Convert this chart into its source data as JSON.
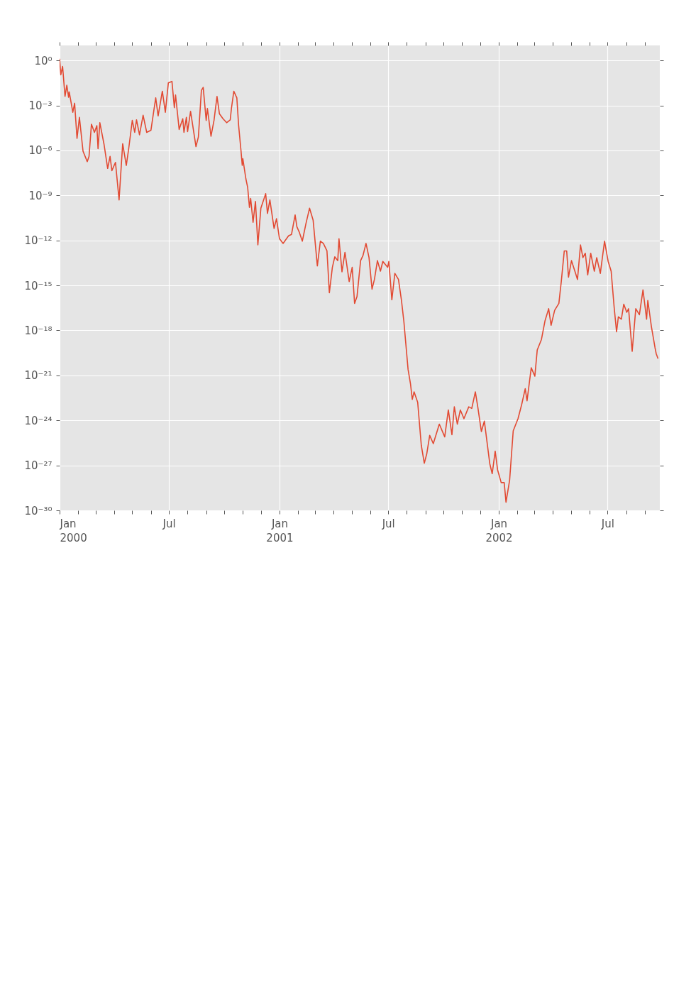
{
  "chart_data": {
    "type": "line",
    "log": "y",
    "grid": true,
    "xlim": [
      "2000-01-01",
      "2002-09-26"
    ],
    "ylim": [
      1e-30,
      10
    ],
    "xticks": [
      {
        "value": "2000-01-01",
        "label": "Jan 2000"
      },
      {
        "value": "2000-02-01",
        "label": null
      },
      {
        "value": "2000-03-01",
        "label": null
      },
      {
        "value": "2000-04-01",
        "label": null
      },
      {
        "value": "2000-05-01",
        "label": null
      },
      {
        "value": "2000-06-01",
        "label": null
      },
      {
        "value": "2000-07-01",
        "label": "Jul"
      },
      {
        "value": "2000-08-01",
        "label": null
      },
      {
        "value": "2000-09-01",
        "label": null
      },
      {
        "value": "2000-10-01",
        "label": null
      },
      {
        "value": "2000-11-01",
        "label": null
      },
      {
        "value": "2000-12-01",
        "label": null
      },
      {
        "value": "2001-01-01",
        "label": "Jan 2001"
      },
      {
        "value": "2001-02-01",
        "label": null
      },
      {
        "value": "2001-03-01",
        "label": null
      },
      {
        "value": "2001-04-01",
        "label": null
      },
      {
        "value": "2001-05-01",
        "label": null
      },
      {
        "value": "2001-06-01",
        "label": null
      },
      {
        "value": "2001-07-01",
        "label": "Jul"
      },
      {
        "value": "2001-08-01",
        "label": null
      },
      {
        "value": "2001-09-01",
        "label": null
      },
      {
        "value": "2001-10-01",
        "label": null
      },
      {
        "value": "2001-11-01",
        "label": null
      },
      {
        "value": "2001-12-01",
        "label": null
      },
      {
        "value": "2002-01-01",
        "label": "Jan 2002"
      },
      {
        "value": "2002-02-01",
        "label": null
      },
      {
        "value": "2002-03-01",
        "label": null
      },
      {
        "value": "2002-04-01",
        "label": null
      },
      {
        "value": "2002-05-01",
        "label": null
      },
      {
        "value": "2002-06-01",
        "label": null
      },
      {
        "value": "2002-07-01",
        "label": "Jul"
      },
      {
        "value": "2002-08-01",
        "label": null
      },
      {
        "value": "2002-09-01",
        "label": null
      }
    ],
    "yticks": [
      {
        "value": 1,
        "label": "10⁰"
      },
      {
        "value": 0.001,
        "label": "10⁻³"
      },
      {
        "value": 1e-06,
        "label": "10⁻⁶"
      },
      {
        "value": 1e-09,
        "label": "10⁻⁹"
      },
      {
        "value": 1e-12,
        "label": "10⁻¹²"
      },
      {
        "value": 1e-15,
        "label": "10⁻¹⁵"
      },
      {
        "value": 1e-18,
        "label": "10⁻¹⁸"
      },
      {
        "value": 1e-21,
        "label": "10⁻²¹"
      },
      {
        "value": 1e-24,
        "label": "10⁻²⁴"
      },
      {
        "value": 1e-27,
        "label": "10⁻²⁷"
      },
      {
        "value": 1e-30,
        "label": "10⁻³⁰"
      }
    ],
    "x": [
      "2000-01-01",
      "2000-01-03",
      "2000-01-06",
      "2000-01-10",
      "2000-01-13",
      "2000-01-16",
      "2000-01-17",
      "2000-01-23",
      "2000-01-26",
      "2000-01-30",
      "2000-02-03",
      "2000-02-09",
      "2000-02-16",
      "2000-02-19",
      "2000-02-23",
      "2000-02-28",
      "2000-03-03",
      "2000-03-05",
      "2000-03-08",
      "2000-03-15",
      "2000-03-21",
      "2000-03-25",
      "2000-03-28",
      "2000-04-03",
      "2000-04-09",
      "2000-04-15",
      "2000-04-21",
      "2000-04-25",
      "2000-05-01",
      "2000-05-05",
      "2000-05-08",
      "2000-05-13",
      "2000-05-19",
      "2000-05-25",
      "2000-06-01",
      "2000-06-06",
      "2000-06-09",
      "2000-06-13",
      "2000-06-20",
      "2000-06-25",
      "2000-06-30",
      "2000-07-06",
      "2000-07-10",
      "2000-07-12",
      "2000-07-18",
      "2000-07-24",
      "2000-07-26",
      "2000-07-30",
      "2000-08-01",
      "2000-08-06",
      "2000-08-15",
      "2000-08-19",
      "2000-08-24",
      "2000-08-27",
      "2000-09-01",
      "2000-09-03",
      "2000-09-09",
      "2000-09-14",
      "2000-09-19",
      "2000-09-23",
      "2000-09-29",
      "2000-10-05",
      "2000-10-11",
      "2000-10-13",
      "2000-10-17",
      "2000-10-22",
      "2000-10-25",
      "2000-10-29",
      "2000-10-31",
      "2000-11-01",
      "2000-11-06",
      "2000-11-09",
      "2000-11-12",
      "2000-11-14",
      "2000-11-18",
      "2000-11-22",
      "2000-11-26",
      "2000-12-01",
      "2000-12-09",
      "2000-12-12",
      "2000-12-16",
      "2000-12-23",
      "2000-12-27",
      "2001-01-01",
      "2001-01-07",
      "2001-01-16",
      "2001-01-21",
      "2001-01-27",
      "2001-01-30",
      "2001-02-03",
      "2001-02-08",
      "2001-02-14",
      "2001-02-20",
      "2001-02-26",
      "2001-03-05",
      "2001-03-10",
      "2001-03-15",
      "2001-03-21",
      "2001-03-25",
      "2001-03-30",
      "2001-04-03",
      "2001-04-08",
      "2001-04-10",
      "2001-04-15",
      "2001-04-20",
      "2001-04-27",
      "2001-05-02",
      "2001-05-06",
      "2001-05-10",
      "2001-05-16",
      "2001-05-20",
      "2001-05-25",
      "2001-05-30",
      "2001-06-04",
      "2001-06-08",
      "2001-06-13",
      "2001-06-18",
      "2001-06-22",
      "2001-06-30",
      "2001-07-02",
      "2001-07-07",
      "2001-07-12",
      "2001-07-18",
      "2001-07-23",
      "2001-07-27",
      "2001-08-03",
      "2001-08-07",
      "2001-08-10",
      "2001-08-13",
      "2001-08-19",
      "2001-08-25",
      "2001-08-30",
      "2001-09-03",
      "2001-09-08",
      "2001-09-14",
      "2001-09-24",
      "2001-10-03",
      "2001-10-09",
      "2001-10-15",
      "2001-10-19",
      "2001-10-24",
      "2001-10-29",
      "2001-11-04",
      "2001-11-12",
      "2001-11-17",
      "2001-11-23",
      "2001-11-27",
      "2001-12-03",
      "2001-12-08",
      "2001-12-17",
      "2001-12-21",
      "2001-12-26",
      "2001-12-30",
      "2002-01-05",
      "2002-01-10",
      "2002-01-13",
      "2002-01-19",
      "2002-01-25",
      "2002-02-02",
      "2002-02-08",
      "2002-02-14",
      "2002-02-17",
      "2002-02-24",
      "2002-03-02",
      "2002-03-06",
      "2002-03-13",
      "2002-03-19",
      "2002-03-25",
      "2002-03-29",
      "2002-04-04",
      "2002-04-11",
      "2002-04-15",
      "2002-04-20",
      "2002-04-24",
      "2002-04-27",
      "2002-05-02",
      "2002-05-08",
      "2002-05-12",
      "2002-05-17",
      "2002-05-21",
      "2002-05-25",
      "2002-05-29",
      "2002-06-03",
      "2002-06-09",
      "2002-06-13",
      "2002-06-19",
      "2002-06-26",
      "2002-07-02",
      "2002-07-07",
      "2002-07-12",
      "2002-07-16",
      "2002-07-19",
      "2002-07-24",
      "2002-07-28",
      "2002-08-02",
      "2002-08-05",
      "2002-08-11",
      "2002-08-17",
      "2002-08-23",
      "2002-08-29",
      "2002-09-04",
      "2002-09-06",
      "2002-09-12",
      "2002-09-18",
      "2002-09-20",
      "2002-09-23"
    ],
    "series": [
      {
        "color": "#e24a33",
        "values": [
          1.3,
          0.11,
          0.4,
          0.004,
          0.022,
          0.0035,
          0.008,
          0.00035,
          0.0014,
          6.3e-06,
          0.00016,
          8.9e-07,
          1.8e-07,
          4e-07,
          5.6e-05,
          1.6e-05,
          4.5e-05,
          1.3e-06,
          7.1e-05,
          2.5e-06,
          6.3e-08,
          4e-07,
          4.5e-08,
          1.6e-07,
          5e-10,
          2.8e-06,
          1e-07,
          1.3e-06,
          0.0001,
          1.6e-05,
          0.00011,
          1.1e-05,
          0.00022,
          1.6e-05,
          2.2e-05,
          0.0005,
          0.0032,
          0.0002,
          0.0089,
          0.00035,
          0.032,
          0.04,
          0.00071,
          0.005,
          2.5e-05,
          0.00013,
          1.6e-05,
          0.00016,
          1.8e-05,
          0.0004,
          1.8e-06,
          8e-06,
          0.01,
          0.016,
          0.0001,
          0.00063,
          8.9e-06,
          0.0001,
          0.004,
          0.00028,
          0.00013,
          7.1e-05,
          0.00011,
          0.00063,
          0.0089,
          0.0032,
          4.5e-05,
          8.9e-07,
          1e-07,
          2.8e-07,
          1.3e-08,
          3.5e-09,
          1.6e-10,
          6.3e-10,
          1.6e-11,
          4e-10,
          5e-13,
          1.4e-10,
          1.3e-09,
          6.3e-11,
          5e-10,
          6.3e-12,
          2.8e-11,
          1.3e-12,
          6.3e-13,
          2e-12,
          2.5e-12,
          5e-11,
          8e-12,
          3.5e-12,
          8.9e-13,
          1.3e-11,
          1.4e-10,
          2.2e-11,
          2e-14,
          8.9e-13,
          6.3e-13,
          2e-13,
          3.2e-16,
          1.6e-14,
          8e-14,
          4.5e-14,
          1.3e-12,
          8e-15,
          1.6e-13,
          1.8e-15,
          1.6e-14,
          6.3e-17,
          1.8e-16,
          4.5e-14,
          1e-13,
          6.3e-13,
          7.1e-14,
          5.6e-16,
          2.5e-15,
          4.5e-14,
          8.9e-15,
          4e-14,
          1.6e-14,
          4e-14,
          1.1e-16,
          6.3e-15,
          2.5e-15,
          1e-16,
          4e-18,
          2.5e-21,
          2.8e-22,
          2.5e-23,
          8e-23,
          1.6e-23,
          2.2e-26,
          1.4e-27,
          5.6e-27,
          1e-25,
          2.8e-26,
          5.6e-25,
          8e-26,
          5e-24,
          1.1e-25,
          8e-24,
          5.6e-25,
          5e-24,
          1.3e-24,
          8e-24,
          6.3e-24,
          8e-23,
          8e-24,
          1.8e-25,
          8.9e-25,
          1.3e-27,
          2.8e-28,
          8.9e-27,
          5e-28,
          7.1e-29,
          7.1e-29,
          3.5e-30,
          1e-28,
          2e-25,
          1.3e-24,
          1.1e-23,
          1.3e-22,
          2e-23,
          3.2e-21,
          8.9e-22,
          5e-20,
          2.5e-19,
          4.5e-18,
          2.8e-17,
          2.2e-18,
          2.2e-17,
          6.3e-17,
          1.8e-15,
          2e-13,
          2e-13,
          3.5e-15,
          4.5e-14,
          8e-15,
          2.5e-15,
          5e-13,
          7.1e-14,
          1.4e-13,
          5e-15,
          1.4e-13,
          8.9e-15,
          7.1e-14,
          6.3e-15,
          8.9e-13,
          4e-14,
          8.9e-15,
          3.5e-17,
          8e-19,
          8e-18,
          5.6e-18,
          5.6e-17,
          1.6e-17,
          2.8e-17,
          4e-20,
          2.8e-17,
          1.1e-17,
          5e-16,
          5.6e-18,
          1e-16,
          1.8e-18,
          7.1e-20,
          2.8e-20,
          1.3e-20
        ]
      }
    ]
  }
}
